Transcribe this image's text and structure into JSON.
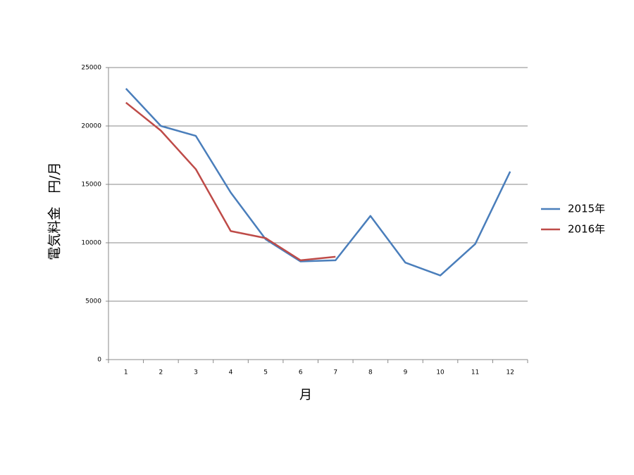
{
  "chart_data": {
    "type": "line",
    "y_label": "電気料金　円/月",
    "x_label": "月",
    "categories": [
      "1",
      "2",
      "3",
      "4",
      "5",
      "6",
      "7",
      "8",
      "9",
      "10",
      "11",
      "12"
    ],
    "series": [
      {
        "name": "2015年",
        "color": "#4a7ebb",
        "values": [
          23200,
          20000,
          19150,
          14300,
          10300,
          8400,
          8500,
          12300,
          8300,
          7200,
          9900,
          16100
        ]
      },
      {
        "name": "2016年",
        "color": "#be4b48",
        "values": [
          22000,
          19600,
          16300,
          11000,
          10400,
          8500,
          8800,
          null,
          null,
          null,
          null,
          null
        ]
      }
    ],
    "ylim": [
      0,
      25000
    ],
    "yticks": [
      0,
      5000,
      10000,
      15000,
      20000,
      25000
    ],
    "grid": true,
    "legend": "right"
  }
}
